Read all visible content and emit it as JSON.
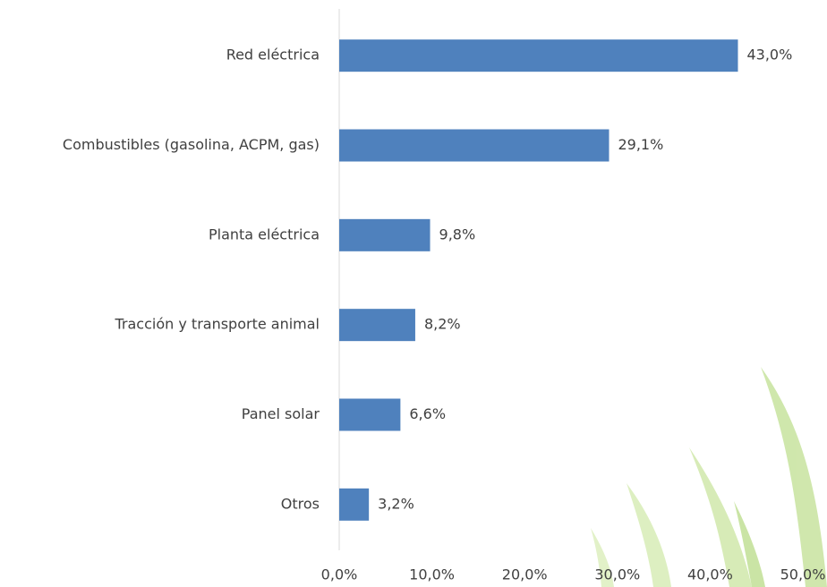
{
  "chart_data": {
    "type": "bar",
    "orientation": "horizontal",
    "categories": [
      "Red eléctrica",
      "Combustibles (gasolina, ACPM, gas)",
      "Planta eléctrica",
      "Tracción y transporte animal",
      "Panel solar",
      "Otros"
    ],
    "values": [
      43.0,
      29.1,
      9.8,
      8.2,
      6.6,
      3.2
    ],
    "value_labels": [
      "43,0%",
      "29,1%",
      "9,8%",
      "8,2%",
      "6,6%",
      "3,2%"
    ],
    "color": "#4f81bd",
    "xlim": [
      0,
      50
    ],
    "xticks": [
      {
        "value": 0,
        "label": "0,0%"
      },
      {
        "value": 10,
        "label": "10,0%"
      },
      {
        "value": 20,
        "label": "20,0%"
      },
      {
        "value": 30,
        "label": "30,0%"
      },
      {
        "value": 40,
        "label": "40,0%"
      },
      {
        "value": 50,
        "label": "50,0%"
      }
    ],
    "grid": false
  }
}
